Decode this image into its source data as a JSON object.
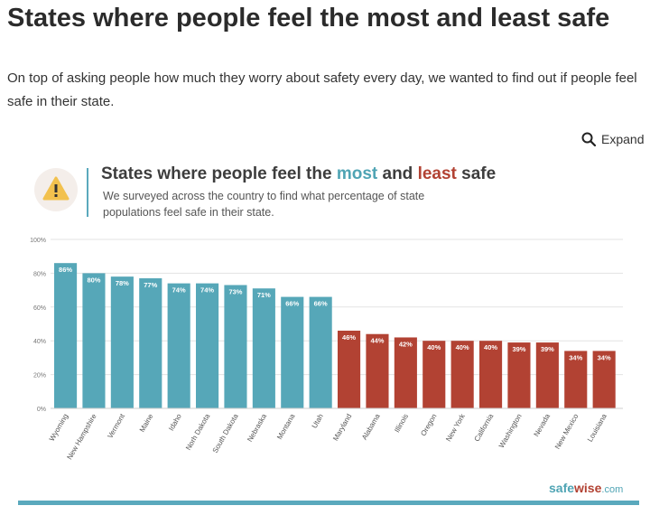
{
  "article": {
    "title": "States where people feel the most and least safe",
    "intro": "On top of asking people how much they worry about safety every day, we wanted to find out if people feel safe in their state."
  },
  "expand": {
    "label": "Expand",
    "icon": "search-icon"
  },
  "chart_card": {
    "title_pre": "States where people feel the ",
    "title_most": "most",
    "title_mid": " and ",
    "title_least": "least",
    "title_post": " safe",
    "subtitle": "We surveyed across the country to find what percentage of state populations feel safe in their state.",
    "icon": "warning-icon",
    "brand_safe": "safe",
    "brand_wise": "wise",
    "brand_domain": ".com"
  },
  "colors": {
    "most": "#56a7b8",
    "least": "#b24233",
    "accent": "#5aa9bd"
  },
  "chart_data": {
    "type": "bar",
    "title": "States where people feel the most and least safe",
    "categories": [
      "Wyoming",
      "New Hampshire",
      "Vermont",
      "Maine",
      "Idaho",
      "Norh Dakota",
      "South Dakota",
      "Nebraska",
      "Montana",
      "Utah",
      "Maryland",
      "Alabama",
      "Illinois",
      "Oregon",
      "New York",
      "California",
      "Washington",
      "Nevada",
      "New Mexico",
      "Louisiana"
    ],
    "values": [
      86,
      80,
      78,
      77,
      74,
      74,
      73,
      71,
      66,
      66,
      46,
      44,
      42,
      40,
      40,
      40,
      39,
      39,
      34,
      34
    ],
    "value_labels": [
      "86%",
      "80%",
      "78%",
      "77%",
      "74%",
      "74%",
      "73%",
      "71%",
      "66%",
      "66%",
      "46%",
      "44%",
      "42%",
      "40%",
      "40%",
      "40%",
      "39%",
      "39%",
      "34%",
      "34%"
    ],
    "groups": [
      "most",
      "most",
      "most",
      "most",
      "most",
      "most",
      "most",
      "most",
      "most",
      "most",
      "least",
      "least",
      "least",
      "least",
      "least",
      "least",
      "least",
      "least",
      "least",
      "least"
    ],
    "yticks": [
      "0%",
      "20%",
      "40%",
      "60%",
      "80%",
      "100%"
    ],
    "ylim": [
      0,
      100
    ],
    "grid": true
  }
}
